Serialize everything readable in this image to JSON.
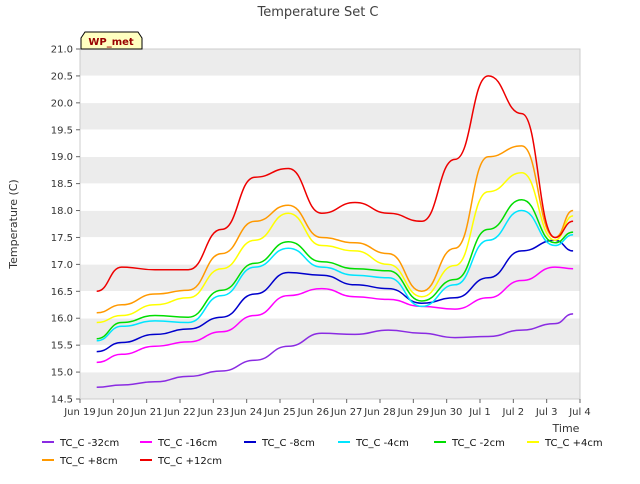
{
  "chart_data": {
    "type": "line",
    "title": "Temperature Set C",
    "xlabel": "Time",
    "ylabel": "Temperature (C)",
    "badge": "WP_met",
    "xlim": [
      "2024-06-19",
      "2024-07-04"
    ],
    "ylim": [
      14.5,
      21.0
    ],
    "yticks": [
      14.5,
      15.0,
      15.5,
      16.0,
      16.5,
      17.0,
      17.5,
      18.0,
      18.5,
      19.0,
      19.5,
      20.0,
      20.5,
      21.0
    ],
    "xticks": [
      {
        "x": "2024-06-19",
        "label": "Jun 19"
      },
      {
        "x": "2024-06-20",
        "label": "Jun 20"
      },
      {
        "x": "2024-06-21",
        "label": "Jun 21"
      },
      {
        "x": "2024-06-22",
        "label": "Jun 22"
      },
      {
        "x": "2024-06-23",
        "label": "Jun 23"
      },
      {
        "x": "2024-06-24",
        "label": "Jun 24"
      },
      {
        "x": "2024-06-25",
        "label": "Jun 25"
      },
      {
        "x": "2024-06-26",
        "label": "Jun 26"
      },
      {
        "x": "2024-06-27",
        "label": "Jun 27"
      },
      {
        "x": "2024-06-28",
        "label": "Jun 28"
      },
      {
        "x": "2024-06-29",
        "label": "Jun 29"
      },
      {
        "x": "2024-06-30",
        "label": "Jun 30"
      },
      {
        "x": "2024-07-01",
        "label": "Jul 1"
      },
      {
        "x": "2024-07-02",
        "label": "Jul 2"
      },
      {
        "x": "2024-07-03",
        "label": "Jul 3"
      },
      {
        "x": "2024-07-04",
        "label": "Jul 4"
      }
    ],
    "grid": "horizontal alternating bands",
    "legend_position": "bottom",
    "x": [
      "2024-06-19 12:00",
      "2024-06-20 06:00",
      "2024-06-21 06:00",
      "2024-06-22 06:00",
      "2024-06-23 06:00",
      "2024-06-24 06:00",
      "2024-06-25 06:00",
      "2024-06-26 06:00",
      "2024-06-27 06:00",
      "2024-06-28 06:00",
      "2024-06-29 06:00",
      "2024-06-30 06:00",
      "2024-07-01 06:00",
      "2024-07-02 06:00",
      "2024-07-03 06:00",
      "2024-07-03 19:00"
    ],
    "series": [
      {
        "name": "TC_C -32cm",
        "color": "#8a2be2",
        "values": [
          14.72,
          14.76,
          14.82,
          14.92,
          15.02,
          15.22,
          15.48,
          15.72,
          15.7,
          15.78,
          15.72,
          15.64,
          15.66,
          15.78,
          15.9,
          16.08
        ]
      },
      {
        "name": "TC_C -16cm",
        "color": "#ff00ff",
        "values": [
          15.18,
          15.33,
          15.48,
          15.56,
          15.75,
          16.05,
          16.42,
          16.55,
          16.4,
          16.35,
          16.22,
          16.17,
          16.38,
          16.7,
          16.95,
          16.92
        ]
      },
      {
        "name": "TC_C -8cm",
        "color": "#0000cc",
        "values": [
          15.38,
          15.55,
          15.7,
          15.8,
          16.02,
          16.45,
          16.85,
          16.8,
          16.62,
          16.55,
          16.28,
          16.38,
          16.75,
          17.25,
          17.45,
          17.25
        ]
      },
      {
        "name": "TC_C -4cm",
        "color": "#00e5ff",
        "values": [
          15.58,
          15.85,
          15.95,
          15.92,
          16.42,
          16.95,
          17.3,
          16.95,
          16.8,
          16.75,
          16.22,
          16.62,
          17.45,
          18.0,
          17.35,
          17.55
        ]
      },
      {
        "name": "TC_C -2cm",
        "color": "#00dd00",
        "values": [
          15.62,
          15.92,
          16.05,
          16.02,
          16.52,
          17.02,
          17.42,
          17.05,
          16.92,
          16.88,
          16.32,
          16.72,
          17.65,
          18.2,
          17.4,
          17.6
        ]
      },
      {
        "name": "TC_C +4cm",
        "color": "#ffff00",
        "values": [
          15.92,
          16.05,
          16.25,
          16.38,
          16.92,
          17.45,
          17.95,
          17.35,
          17.25,
          17.0,
          16.4,
          16.98,
          18.35,
          18.7,
          17.45,
          17.9
        ]
      },
      {
        "name": "TC_C +8cm",
        "color": "#ff9900",
        "values": [
          16.1,
          16.25,
          16.45,
          16.52,
          17.2,
          17.8,
          18.1,
          17.5,
          17.4,
          17.2,
          16.5,
          17.3,
          19.0,
          19.2,
          17.5,
          18.0
        ]
      },
      {
        "name": "TC_C +12cm",
        "color": "#ee0000",
        "values": [
          16.5,
          16.95,
          16.9,
          16.9,
          17.65,
          18.62,
          18.78,
          17.95,
          18.15,
          17.95,
          17.8,
          18.95,
          20.5,
          19.8,
          17.5,
          17.8
        ]
      }
    ]
  }
}
